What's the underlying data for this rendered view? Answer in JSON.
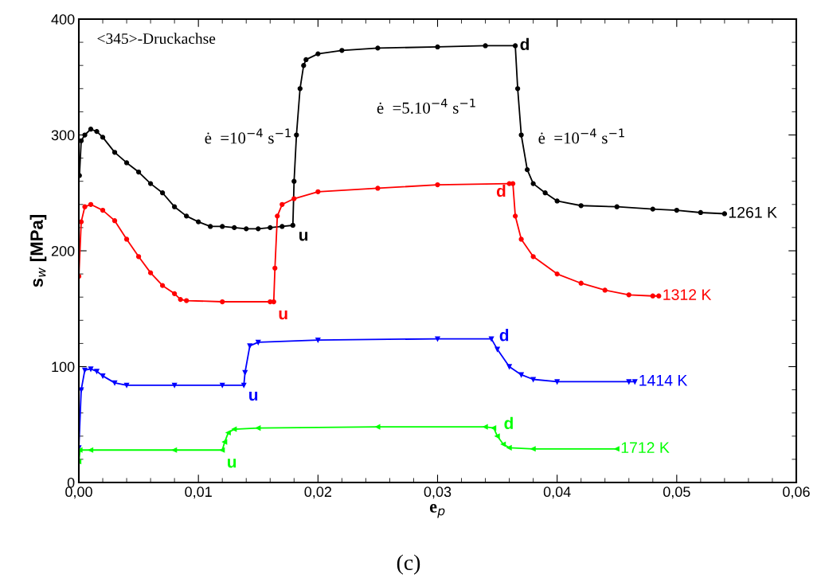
{
  "chart_data": {
    "type": "line",
    "xlabel": "e$_{p}$",
    "ylabel": "s$_{w}$ [MPa]",
    "xlim": [
      0,
      0.06
    ],
    "ylim": [
      0,
      400
    ],
    "xticks": [
      {
        "value": 0,
        "label": "0,00"
      },
      {
        "value": 0.01,
        "label": "0,01"
      },
      {
        "value": 0.02,
        "label": "0,02"
      },
      {
        "value": 0.03,
        "label": "0,03"
      },
      {
        "value": 0.04,
        "label": "0,04"
      },
      {
        "value": 0.05,
        "label": "0,05"
      },
      {
        "value": 0.06,
        "label": "0,06"
      }
    ],
    "yticks": [
      0,
      100,
      200,
      300,
      400
    ],
    "grid": false,
    "line_style": "solid",
    "series": [
      {
        "name": "1261 K",
        "color": "#000000",
        "marker": "circle",
        "x": [
          5e-05,
          0.0002,
          0.0005,
          0.001,
          0.0015,
          0.002,
          0.003,
          0.004,
          0.005,
          0.006,
          0.007,
          0.008,
          0.009,
          0.01,
          0.011,
          0.012,
          0.013,
          0.014,
          0.015,
          0.016,
          0.017,
          0.0179,
          0.018,
          0.0182,
          0.0185,
          0.0188,
          0.019,
          0.02,
          0.022,
          0.025,
          0.03,
          0.034,
          0.0365,
          0.0367,
          0.037,
          0.0375,
          0.038,
          0.039,
          0.04,
          0.042,
          0.045,
          0.048,
          0.05,
          0.052,
          0.054
        ],
        "values": [
          265,
          295,
          300,
          305,
          303,
          298,
          285,
          276,
          268,
          258,
          250,
          238,
          230,
          225,
          221,
          221,
          220,
          219,
          219,
          220,
          221,
          222,
          260,
          300,
          340,
          360,
          365,
          370,
          373,
          375,
          376,
          377,
          377,
          340,
          300,
          270,
          258,
          250,
          243,
          239,
          238,
          236,
          235,
          233,
          232
        ]
      },
      {
        "name": "1312 K",
        "color": "#ff0000",
        "marker": "circle",
        "x": [
          0,
          0.0002,
          0.0005,
          0.001,
          0.002,
          0.003,
          0.004,
          0.005,
          0.006,
          0.007,
          0.008,
          0.0085,
          0.009,
          0.012,
          0.016,
          0.0163,
          0.0164,
          0.0166,
          0.017,
          0.018,
          0.02,
          0.025,
          0.03,
          0.036,
          0.0363,
          0.0365,
          0.037,
          0.038,
          0.04,
          0.042,
          0.044,
          0.046,
          0.048,
          0.0485
        ],
        "values": [
          178,
          225,
          238,
          240,
          235,
          226,
          210,
          195,
          181,
          170,
          163,
          158,
          157,
          156,
          156,
          156,
          185,
          230,
          240,
          245,
          251,
          254,
          257,
          258,
          258,
          230,
          210,
          195,
          180,
          172,
          166,
          162,
          161,
          161
        ]
      },
      {
        "name": "1414 K",
        "color": "#0000ff",
        "marker": "triangle_down",
        "x": [
          0,
          0.0002,
          0.0005,
          0.001,
          0.0015,
          0.002,
          0.003,
          0.004,
          0.008,
          0.012,
          0.0138,
          0.0139,
          0.0143,
          0.015,
          0.02,
          0.03,
          0.0345,
          0.035,
          0.036,
          0.037,
          0.038,
          0.04,
          0.046,
          0.0465
        ],
        "values": [
          30,
          80,
          97,
          98,
          96,
          92,
          86,
          84,
          84,
          84,
          84,
          95,
          118,
          121,
          123,
          124,
          124,
          115,
          100,
          93,
          89,
          87,
          87,
          87
        ]
      },
      {
        "name": "1712 K",
        "color": "#00ff00",
        "marker": "triangle_left",
        "x": [
          0,
          0.0001,
          0.001,
          0.008,
          0.012,
          0.0122,
          0.0125,
          0.013,
          0.015,
          0.025,
          0.034,
          0.0347,
          0.035,
          0.0355,
          0.036,
          0.038,
          0.045
        ],
        "values": [
          18,
          28,
          28,
          28,
          28,
          35,
          43,
          46,
          47,
          48,
          48,
          47,
          40,
          33,
          30,
          29,
          29
        ]
      }
    ],
    "annotations": [
      "<345>-Druckachse",
      "ė  =10$^{−4}$ s$^{−1}$",
      "ė  =5.10$^{−4}$ s$^{−1}$",
      "ė  =10$^{−4}$ s$^{−1}$",
      "(c)",
      {
        "text": "u",
        "x": 0.0179,
        "y": 222
      },
      {
        "text": "d",
        "x": 0.0365,
        "y": 377
      },
      {
        "text": "u",
        "x": 0.0163,
        "y": 156
      },
      {
        "text": "d",
        "x": 0.0363,
        "y": 258
      },
      {
        "text": "u",
        "x": 0.0138,
        "y": 84
      },
      {
        "text": "d",
        "x": 0.0345,
        "y": 124
      },
      {
        "text": "u",
        "x": 0.012,
        "y": 28
      },
      {
        "text": "d",
        "x": 0.0347,
        "y": 48
      }
    ]
  }
}
